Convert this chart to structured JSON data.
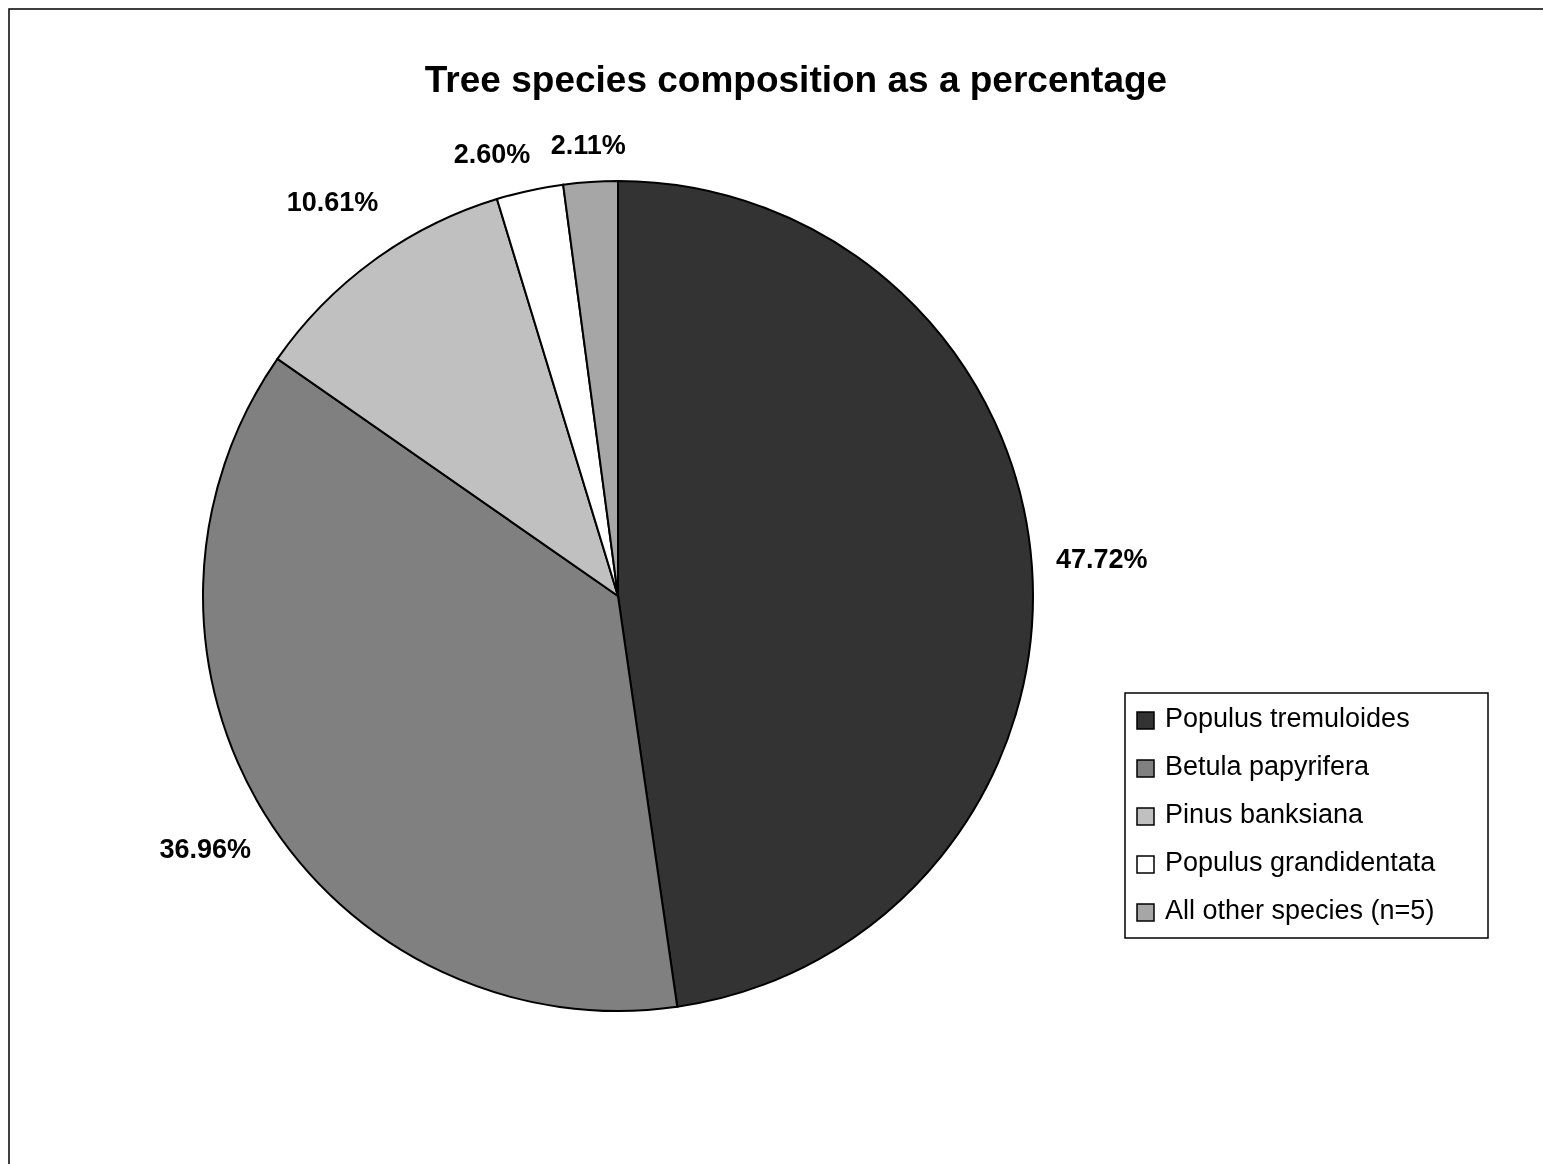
{
  "chart_data": {
    "type": "pie",
    "title": "Tree species composition as a percentage",
    "categories": [
      "Populus tremuloides",
      "Betula papyrifera",
      "Pinus banksiana",
      "Populus grandidentata",
      "All other species (n=5)"
    ],
    "values": [
      47.72,
      36.96,
      10.61,
      2.6,
      2.11
    ],
    "colors": [
      "#333333",
      "#808080",
      "#c0c0c0",
      "#ffffff",
      "#a6a6a6"
    ],
    "value_labels": [
      "47.72%",
      "36.96%",
      "10.61%",
      "2.60%",
      "2.11%"
    ],
    "legend": "right"
  }
}
